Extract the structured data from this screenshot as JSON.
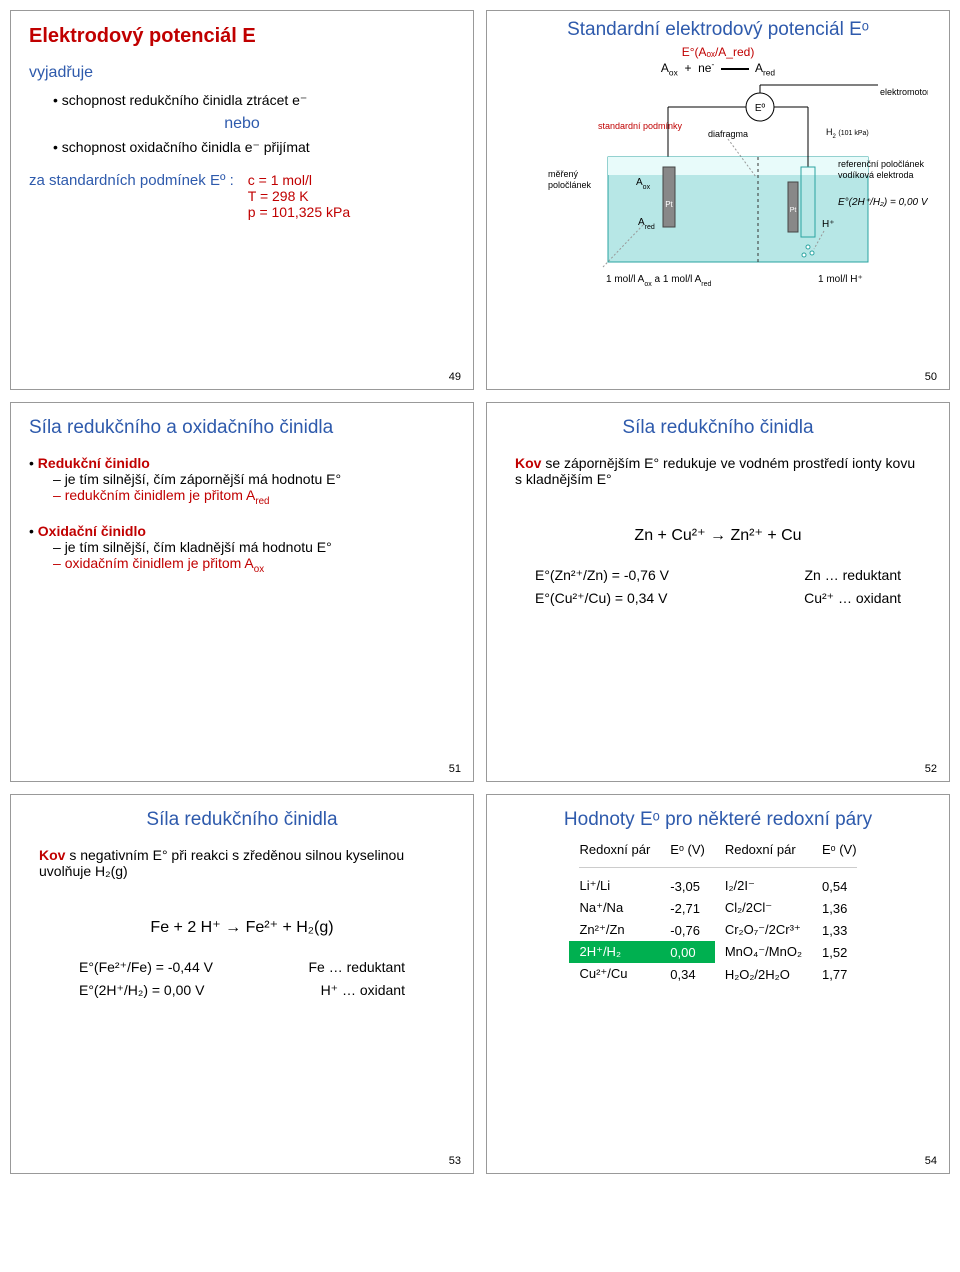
{
  "s49": {
    "num": "49",
    "title": "Elektrodový potenciál E",
    "vyj": "vyjadřuje",
    "b1": "schopnost redukčního činidla ztrácet e⁻",
    "nebo": "nebo",
    "b2": "schopnost oxidačního činidla e⁻ přijímat",
    "cond_label": "za standardních podmínek Eº :",
    "c1": "c = 1 mol/l",
    "c2": "T = 298 K",
    "c3": "p = 101,325 kPa"
  },
  "s50": {
    "num": "50",
    "title": "Standardní elektrodový potenciál Eᵒ",
    "eq_top": "E°(Aₒₓ/A_red)",
    "eq": "Aₒₓ  +  ne⁻  ⇌  A_red",
    "std": "standardní podmínky",
    "diaf": "diafragma",
    "emf": "elektromotorická síla",
    "mer": "měřený poločlánek",
    "aox": "Aₒₓ",
    "ared": "A_red",
    "pt": "Pt",
    "eo": "Eº",
    "h2": "H₂ (101 kPa)",
    "ref": "referenční poločlánek vodíková elektroda",
    "ehh": "E°(2H⁺/H₂) = 0,00 V",
    "hp": "H⁺",
    "bot_l": "1 mol/l Aₒₓ a 1 mol/l A_red",
    "bot_r": "1 mol/l H⁺"
  },
  "s51": {
    "num": "51",
    "title": "Síla redukčního a oxidačního činidla",
    "red_h": "Redukční činidlo",
    "red1": "je tím silnější, čím zápornější má hodnotu E°",
    "red2": "redukčním činidlem je přitom A_red",
    "ox_h": "Oxidační činidlo",
    "ox1": "je tím silnější, čím kladnější má hodnotu E°",
    "ox2": "oxidačním činidlem je přitom Aₒₓ"
  },
  "s52": {
    "num": "52",
    "title": "Síla redukčního činidla",
    "p1a": "Kov",
    "p1b": " se zápornějším E° redukuje ve vodném prostředí ionty kovu s kladnějším E°",
    "eq": "Zn + Cu²⁺ → Zn²⁺ + Cu",
    "e1": "E°(Zn²⁺/Zn) = -0,76 V",
    "e1r": "Zn … reduktant",
    "e2": "E°(Cu²⁺/Cu) = 0,34 V",
    "e2r": "Cu²⁺ … oxidant"
  },
  "s53": {
    "num": "53",
    "title": "Síla redukčního činidla",
    "p1a": "Kov",
    "p1b": " s negativním E° při reakci s zředěnou silnou kyselinou uvolňuje H₂(g)",
    "eq": "Fe + 2 H⁺ → Fe²⁺ + H₂(g)",
    "e1": "E°(Fe²⁺/Fe) = -0,44 V",
    "e1r": "Fe … reduktant",
    "e2": "E°(2H⁺/H₂) = 0,00 V",
    "e2r": "H⁺ … oxidant"
  },
  "s54": {
    "num": "54",
    "title": "Hodnoty Eᵒ pro některé redoxní páry",
    "h1": "Redoxní pár",
    "h2": "Eᵒ (V)",
    "h3": "Redoxní pár",
    "h4": "Eᵒ (V)",
    "rows": [
      {
        "a": "Li⁺/Li",
        "b": "-3,05",
        "c": "I₂/2I⁻",
        "d": "0,54"
      },
      {
        "a": "Na⁺/Na",
        "b": "-2,71",
        "c": "Cl₂/2Cl⁻",
        "d": "1,36"
      },
      {
        "a": "Zn²⁺/Zn",
        "b": "-0,76",
        "c": "Cr₂O₇⁻/2Cr³⁺",
        "d": "1,33"
      },
      {
        "a": "2H⁺/H₂",
        "b": "0,00",
        "c": "MnO₄⁻/MnO₂",
        "d": "1,52",
        "hl": true
      },
      {
        "a": "Cu²⁺/Cu",
        "b": "0,34",
        "c": "H₂O₂/2H₂O",
        "d": "1,77"
      }
    ]
  }
}
